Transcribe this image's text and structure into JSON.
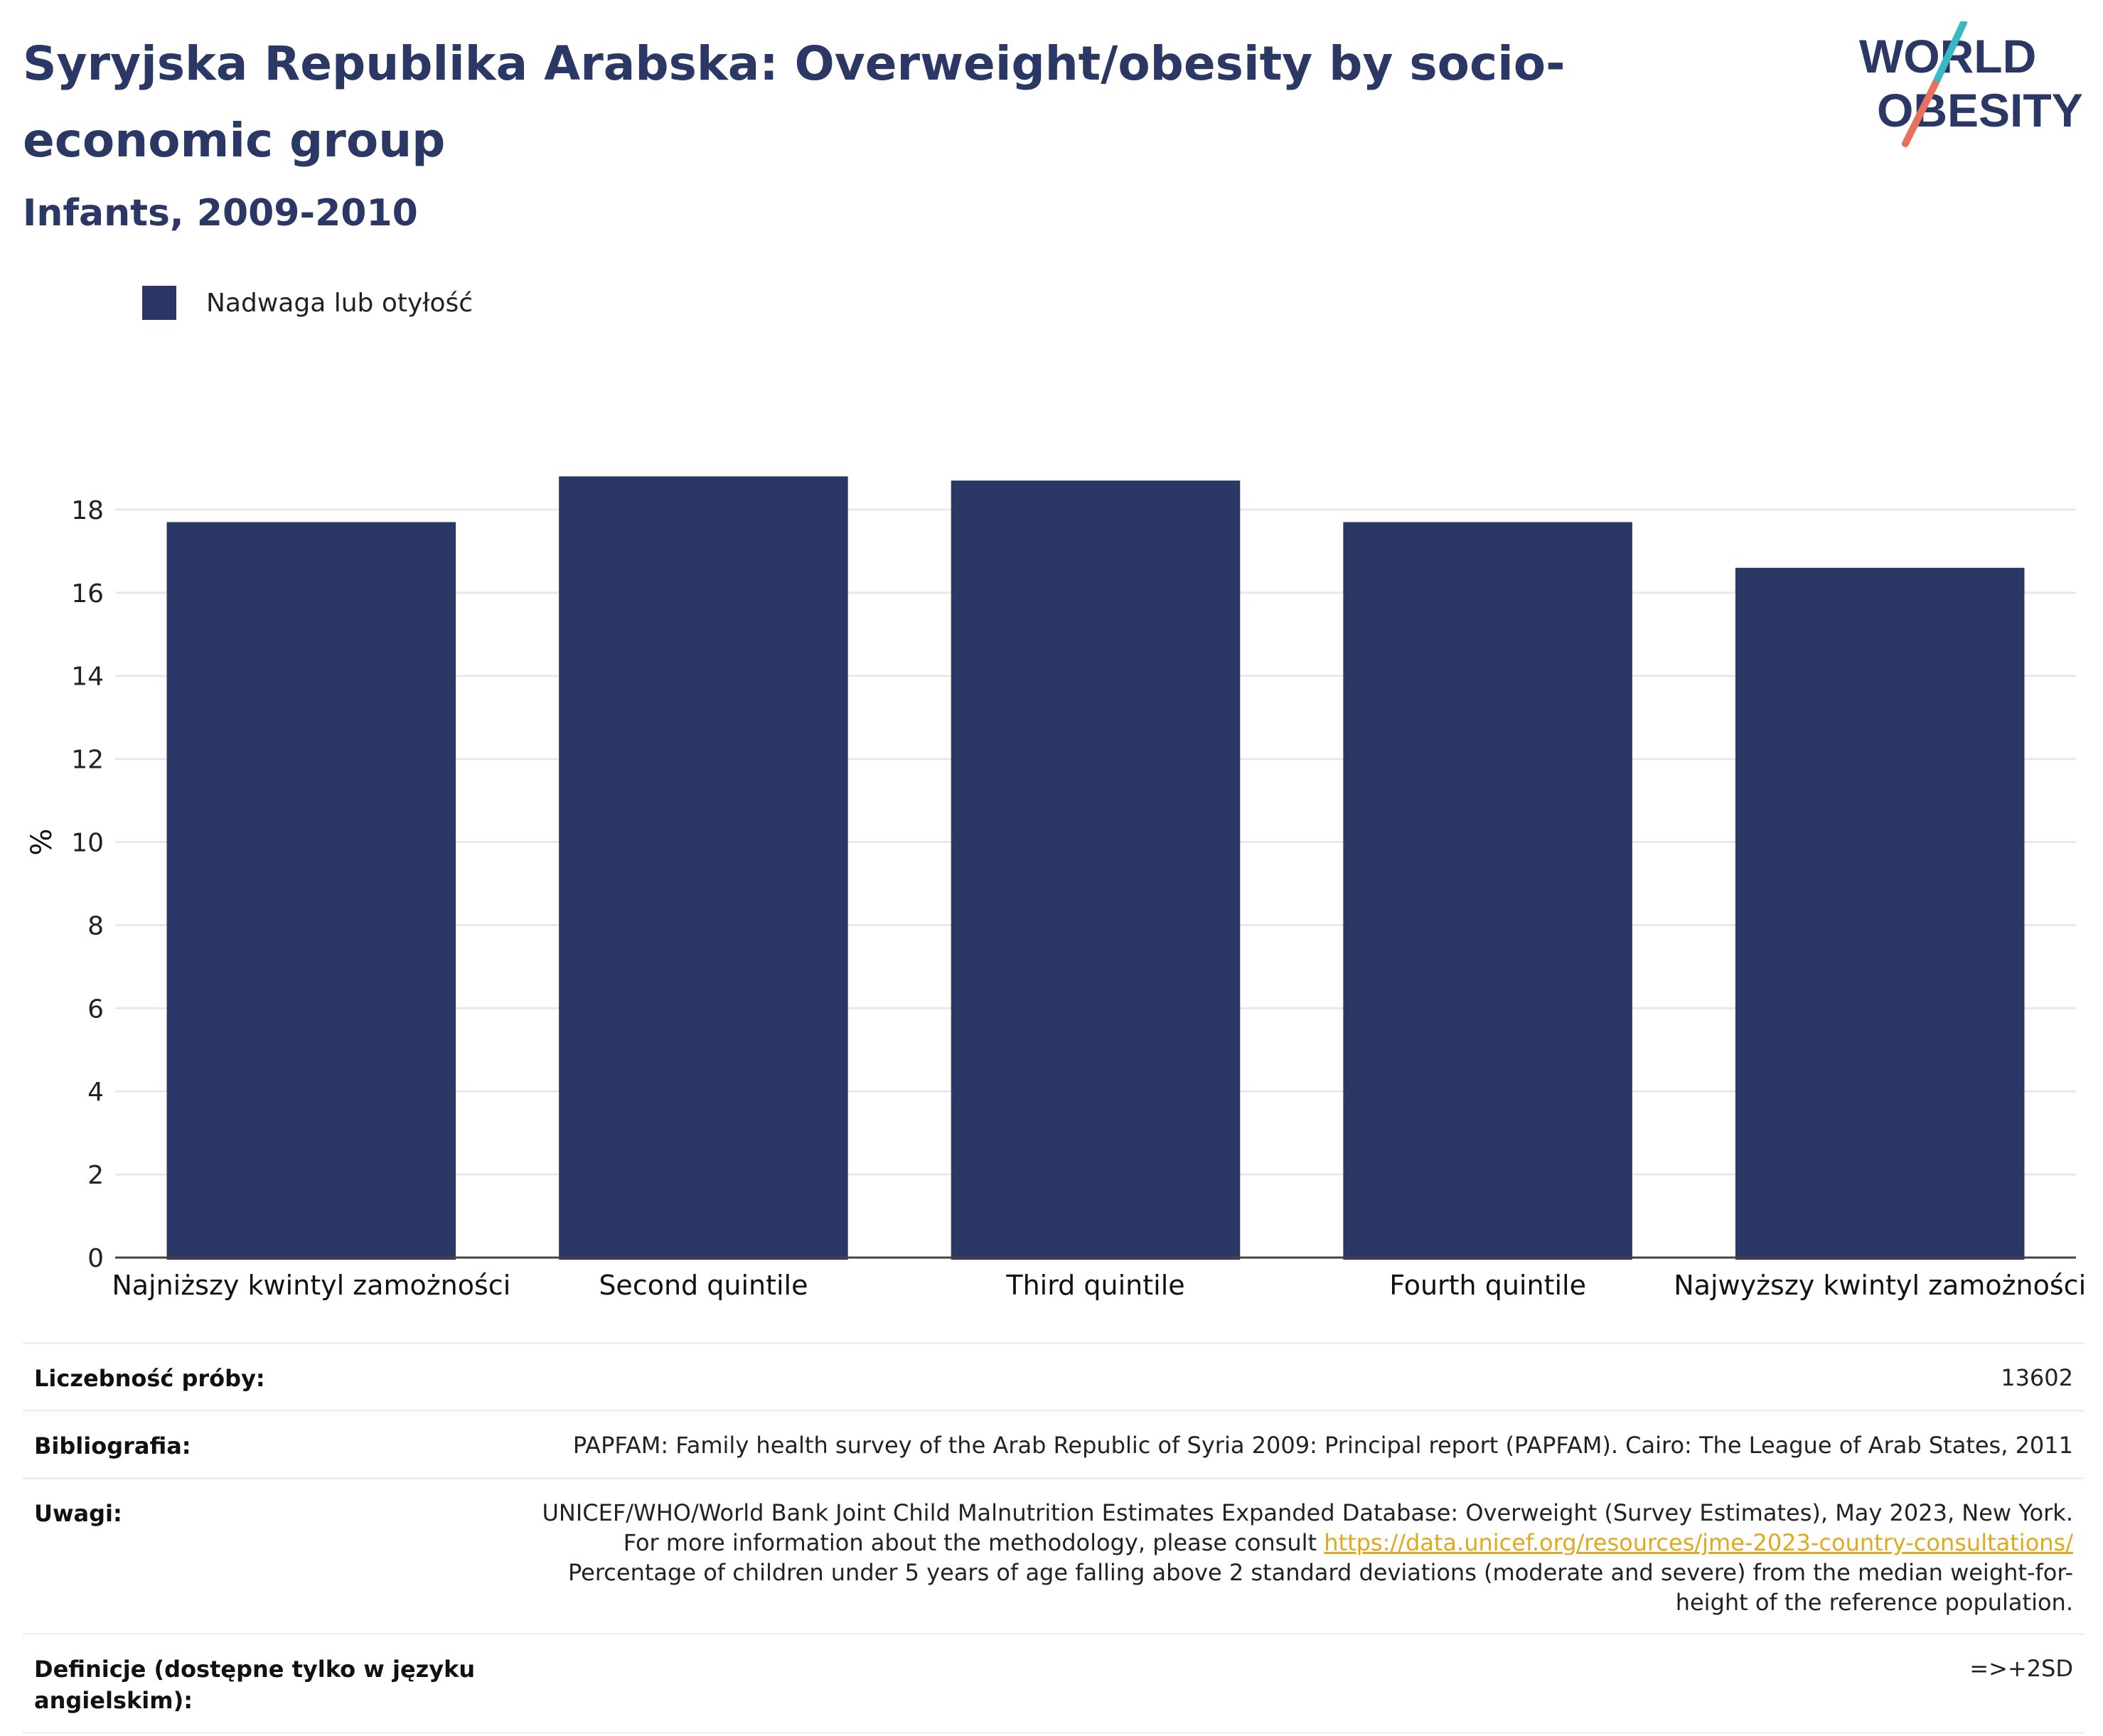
{
  "header": {
    "title": "Syryjska Republika Arabska: Overweight/obesity by socio-economic group",
    "subtitle": "Infants, 2009-2010"
  },
  "logo": {
    "line1": "WORLD",
    "line2": "OBESITY",
    "accent_colors": [
      "#3ab8c4",
      "#e8705e"
    ]
  },
  "legend": {
    "label": "Nadwaga lub otyłość",
    "color": "#2b3764"
  },
  "chart_data": {
    "type": "bar",
    "categories": [
      "Najniższy kwintyl zamożności",
      "Second quintile",
      "Third quintile",
      "Fourth quintile",
      "Najwyższy kwintyl zamożności"
    ],
    "series": [
      {
        "name": "Nadwaga lub otyłość",
        "values": [
          17.7,
          18.8,
          18.7,
          17.7,
          16.6
        ]
      }
    ],
    "ylabel": "%",
    "ylim": [
      0,
      20
    ],
    "yticks": [
      0,
      2,
      4,
      6,
      8,
      10,
      12,
      14,
      16,
      18
    ],
    "grid": true,
    "legend_position": "top-left",
    "bar_color": "#2b3764"
  },
  "info": {
    "sample_label": "Liczebność próby:",
    "sample_value": "13602",
    "bibliography_label": "Bibliografia:",
    "bibliography_value": "PAPFAM: Family health survey of the Arab Republic of Syria 2009: Principal report (PAPFAM). Cairo: The League of Arab States, 2011",
    "notes_label": "Uwagi:",
    "notes_text1": "UNICEF/WHO/World Bank Joint Child Malnutrition Estimates Expanded Database: Overweight (Survey Estimates), May 2023, New York. For more information about the methodology, please consult ",
    "notes_link": "https://data.unicef.org/resources/jme-2023-country-consultations/",
    "notes_text2": "Percentage of children under 5 years of age falling above 2 standard deviations (moderate and severe) from the median weight-for-height of the reference population.",
    "definitions_label": "Definicje (dostępne tylko w języku angielskim):",
    "definitions_value": "=>+2SD"
  }
}
